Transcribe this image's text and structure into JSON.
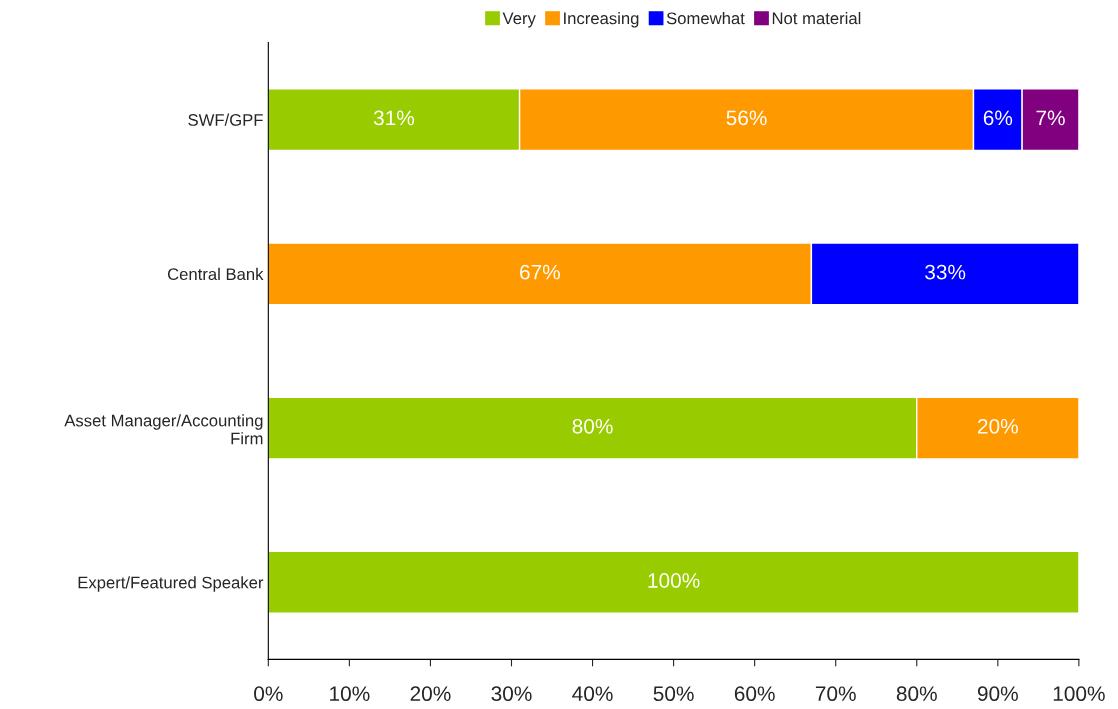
{
  "chart_data": {
    "type": "bar",
    "orientation": "horizontal",
    "stacked": true,
    "categories": [
      "SWF/GPF",
      "Central Bank",
      "Asset Manager/Accounting\nFirm",
      "Expert/Featured Speaker"
    ],
    "series": [
      {
        "name": "Very",
        "color": "#99cc00",
        "values": [
          31,
          null,
          80,
          100
        ],
        "value_labels": [
          "31%",
          null,
          "80%",
          "100%"
        ]
      },
      {
        "name": "Increasing",
        "color": "#ff9900",
        "values": [
          56,
          67,
          20,
          null
        ],
        "value_labels": [
          "56%",
          "67%",
          "20%",
          null
        ]
      },
      {
        "name": "Somewhat",
        "color": "#0000ff",
        "values": [
          6,
          33,
          null,
          null
        ],
        "value_labels": [
          "6%",
          "33%",
          null,
          null
        ]
      },
      {
        "name": "Not material",
        "color": "#800080",
        "values": [
          7,
          null,
          null,
          null
        ],
        "value_labels": [
          "7%",
          null,
          null,
          null
        ]
      }
    ],
    "xlim": [
      0,
      100
    ],
    "xticks": [
      {
        "value": 0,
        "label": "0%"
      },
      {
        "value": 10,
        "label": "10%"
      },
      {
        "value": 20,
        "label": "20%"
      },
      {
        "value": 30,
        "label": "30%"
      },
      {
        "value": 40,
        "label": "40%"
      },
      {
        "value": 50,
        "label": "50%"
      },
      {
        "value": 60,
        "label": "60%"
      },
      {
        "value": 70,
        "label": "70%"
      },
      {
        "value": 80,
        "label": "80%"
      },
      {
        "value": 90,
        "label": "90%"
      },
      {
        "value": 100,
        "label": "100%"
      }
    ],
    "grid": false,
    "legend": "top"
  }
}
